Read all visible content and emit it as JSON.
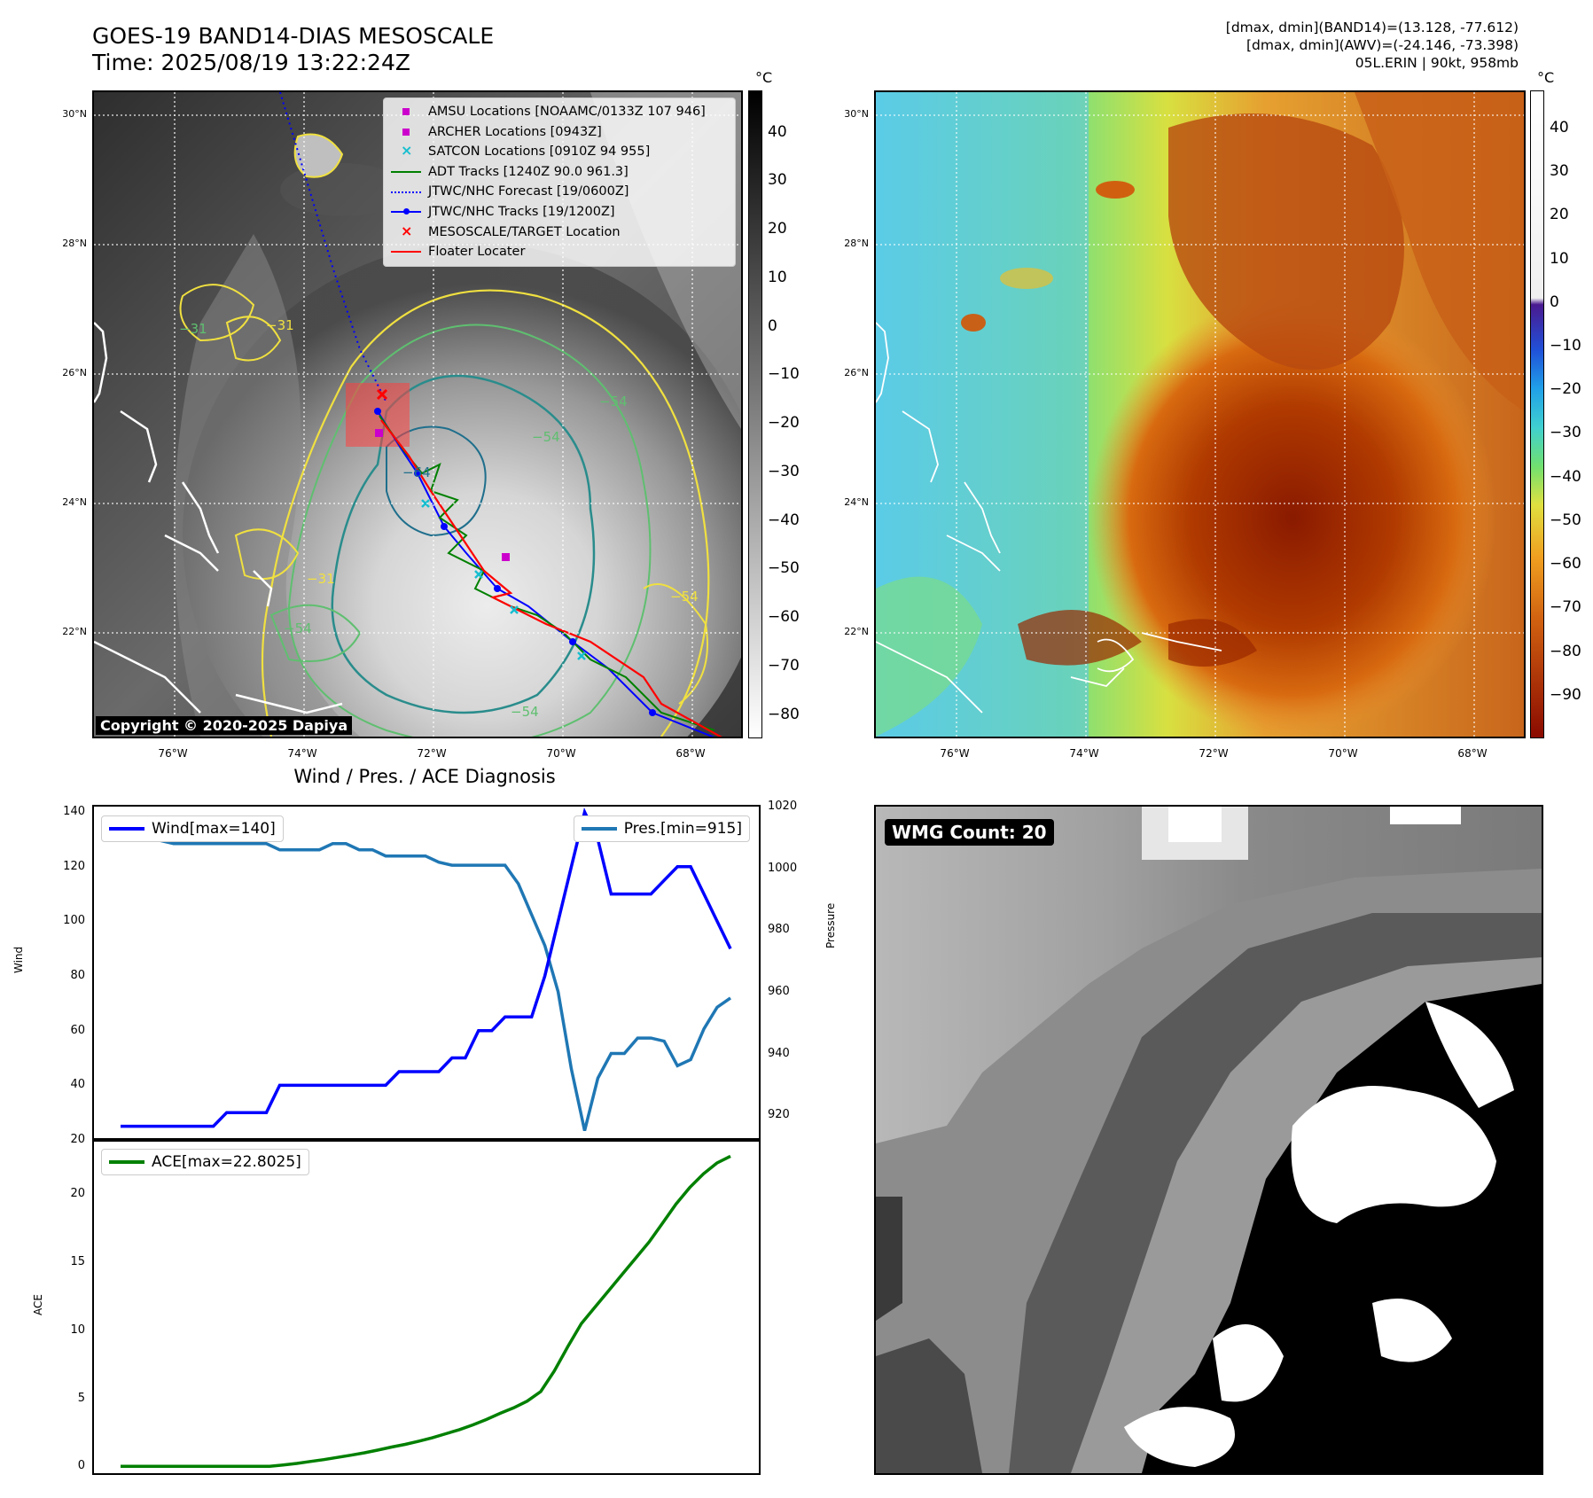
{
  "header": {
    "title_line1": "GOES-19 BAND14-DIAS MESOSCALE",
    "title_line2": "Time: 2025/08/19 13:22:24Z",
    "meta_line1": "[dmax, dmin](BAND14)=(13.128, -77.612)",
    "meta_line2": "[dmax, dmin](AWV)=(-24.146, -73.398)",
    "meta_line3": "05L.ERIN | 90kt, 958mb"
  },
  "map_axes": {
    "lat_labels": [
      "30°N",
      "28°N",
      "26°N",
      "24°N",
      "22°N"
    ],
    "lon_labels": [
      "76°W",
      "74°W",
      "72°W",
      "70°W",
      "68°W"
    ]
  },
  "ir_panel": {
    "colorbar_unit": "°C",
    "colorbar_ticks": [
      "40",
      "30",
      "20",
      "10",
      "0",
      "−10",
      "−20",
      "−30",
      "−40",
      "−50",
      "−60",
      "−70",
      "−80"
    ],
    "copyright": "Copyright © 2020-2025 Dapiya",
    "contour_labels": [
      "−31",
      "−31",
      "−54",
      "−64",
      "−54",
      "−31",
      "−54",
      "−54",
      "−54"
    ],
    "legend": [
      {
        "label": "AMSU Locations [NOAAMC/0133Z 107 946]",
        "symbol": "square",
        "color": "#cc00cc"
      },
      {
        "label": "ARCHER Locations [0943Z]",
        "symbol": "square",
        "color": "#cc00cc"
      },
      {
        "label": "SATCON Locations [0910Z 94 955]",
        "symbol": "x",
        "color": "#17becf"
      },
      {
        "label": "ADT Tracks [1240Z 90.0 961.3]",
        "symbol": "line",
        "color": "#008000"
      },
      {
        "label": "JTWC/NHC Forecast [19/0600Z]",
        "symbol": "dotted",
        "color": "#0000ff"
      },
      {
        "label": "JTWC/NHC Tracks [19/1200Z]",
        "symbol": "line-dot",
        "color": "#0000ff"
      },
      {
        "label": "MESOSCALE/TARGET Location",
        "symbol": "x",
        "color": "#ff0000"
      },
      {
        "label": "Floater Locater",
        "symbol": "line",
        "color": "#ff0000"
      }
    ]
  },
  "wv_panel": {
    "colorbar_unit": "°C",
    "colorbar_ticks": [
      "40",
      "30",
      "20",
      "10",
      "0",
      "−10",
      "−20",
      "−30",
      "−40",
      "−50",
      "−60",
      "−70",
      "−80",
      "−90"
    ]
  },
  "wmg_panel": {
    "label": "WMG Count: 20"
  },
  "chart_data": [
    {
      "type": "line",
      "title": "Wind / Pres. / ACE Diagnosis",
      "ylabel": "Wind",
      "ylabel_right": "Pressure",
      "ylim": [
        20,
        142
      ],
      "ylim_right": [
        912,
        1020
      ],
      "yticks": [
        20,
        40,
        60,
        80,
        100,
        120,
        140
      ],
      "yticks_right": [
        920,
        940,
        960,
        980,
        1000,
        1020
      ],
      "series": [
        {
          "name": "Wind[max=140]",
          "color": "#0000ff",
          "values": [
            25,
            25,
            25,
            25,
            25,
            25,
            25,
            25,
            30,
            30,
            30,
            30,
            40,
            40,
            40,
            40,
            40,
            40,
            40,
            40,
            40,
            45,
            45,
            45,
            45,
            50,
            50,
            60,
            60,
            65,
            65,
            65,
            80,
            100,
            120,
            140,
            130,
            110,
            110,
            110,
            110,
            115,
            120,
            120,
            110,
            100,
            90
          ]
        },
        {
          "name": "Pres.[min=915]",
          "color": "#1f77b4",
          "axis": "right",
          "values": [
            1015,
            1015,
            1010,
            1009,
            1008,
            1008,
            1008,
            1008,
            1008,
            1008,
            1008,
            1008,
            1006,
            1006,
            1006,
            1006,
            1008,
            1008,
            1006,
            1006,
            1004,
            1004,
            1004,
            1004,
            1002,
            1001,
            1001,
            1001,
            1001,
            1001,
            995,
            985,
            975,
            960,
            935,
            915,
            932,
            940,
            940,
            945,
            945,
            944,
            936,
            938,
            948,
            955,
            958
          ]
        }
      ]
    },
    {
      "type": "line",
      "ylabel": "ACE",
      "ylim": [
        -0.5,
        24
      ],
      "yticks": [
        0,
        5,
        10,
        15,
        20
      ],
      "series": [
        {
          "name": "ACE[max=22.8025]",
          "color": "#008000",
          "values": [
            0,
            0,
            0,
            0,
            0,
            0,
            0,
            0,
            0,
            0,
            0,
            0,
            0.1,
            0.22,
            0.36,
            0.5,
            0.66,
            0.82,
            1.0,
            1.2,
            1.42,
            1.62,
            1.85,
            2.1,
            2.4,
            2.7,
            3.05,
            3.45,
            3.9,
            4.3,
            4.8,
            5.5,
            7.0,
            8.8,
            10.5,
            11.7,
            12.9,
            14.1,
            15.3,
            16.5,
            17.9,
            19.3,
            20.5,
            21.5,
            22.3,
            22.8
          ]
        }
      ]
    }
  ]
}
